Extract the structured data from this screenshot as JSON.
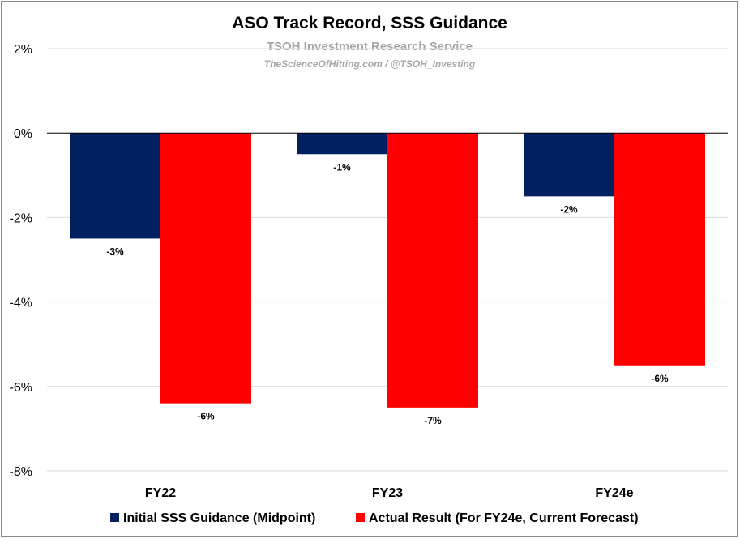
{
  "chart_data": {
    "type": "bar",
    "title": "ASO Track Record, SSS Guidance",
    "watermark": {
      "line1": "TSOH Investment Research Service",
      "line2": "TheScienceOfHitting.com / @TSOH_Investing"
    },
    "categories": [
      "FY22",
      "FY23",
      "FY24e"
    ],
    "series": [
      {
        "name": "Initial SSS Guidance (Midpoint)",
        "color": "#002060",
        "values": [
          -2.5,
          -0.5,
          -1.5
        ],
        "labels": [
          "-3%",
          "-1%",
          "-2%"
        ]
      },
      {
        "name": "Actual Result (For FY24e, Current Forecast)",
        "color": "#ff0000",
        "values": [
          -6.4,
          -6.5,
          -5.5
        ],
        "labels": [
          "-6%",
          "-7%",
          "-6%"
        ]
      }
    ],
    "ylim": [
      -8,
      2
    ],
    "yticks": [
      2,
      0,
      -2,
      -4,
      -6,
      -8
    ],
    "ytick_labels": [
      "2%",
      "0%",
      "-2%",
      "-4%",
      "-6%",
      "-8%"
    ],
    "xlabel": "",
    "ylabel": "",
    "grid": true,
    "legend": "bottom"
  }
}
